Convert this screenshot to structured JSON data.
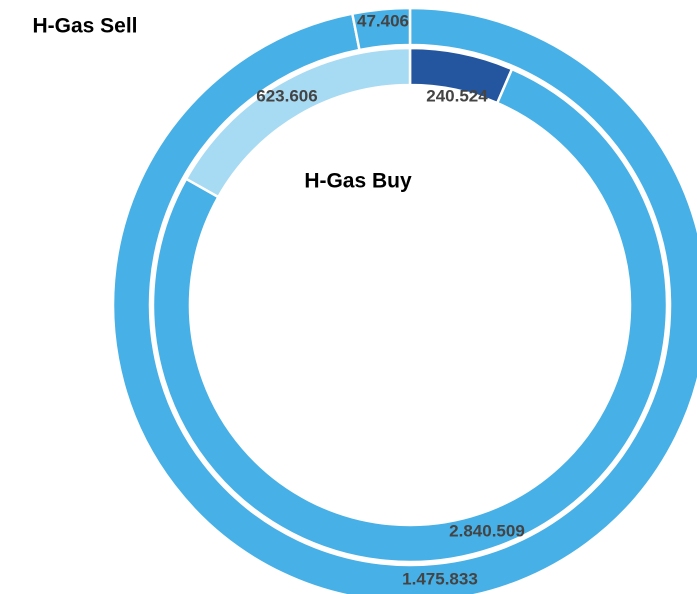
{
  "chart_data": {
    "type": "donut",
    "series": [
      {
        "name": "H-Gas Sell",
        "colors": [
          "#47b0e6",
          "#47b0e6"
        ],
        "values": [
          1475833,
          47406
        ],
        "value_labels": [
          "1.475.833",
          "47.406"
        ]
      },
      {
        "name": "H-Gas Buy",
        "colors": [
          "#2456a0",
          "#47b0e6",
          "#a7daf3"
        ],
        "values": [
          240524,
          2840509,
          623606
        ],
        "value_labels": [
          "240.524",
          "2.840.509",
          "623.606"
        ]
      }
    ]
  }
}
